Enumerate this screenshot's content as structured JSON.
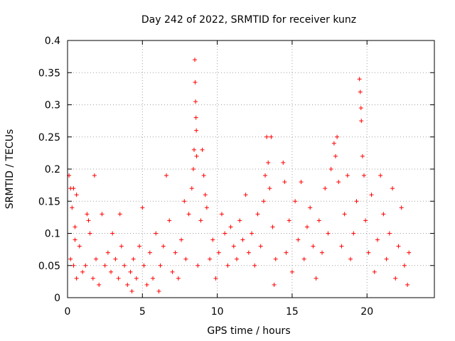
{
  "chart_data": {
    "type": "scatter",
    "title": "Day 242 of 2022, SRMTID for receiver kunz",
    "xlabel": "GPS time / hours",
    "ylabel": "SRMTID / TECUs",
    "xlim": [
      0,
      24.5
    ],
    "ylim": [
      0,
      0.4
    ],
    "xticks": [
      0,
      5,
      10,
      15,
      20
    ],
    "xtick_labels": [
      "0",
      "5",
      "10",
      "15",
      "20"
    ],
    "yticks": [
      0,
      0.05,
      0.1,
      0.15,
      0.2,
      0.25,
      0.3,
      0.35,
      0.4
    ],
    "ytick_labels": [
      "0",
      "0.05",
      "0.1",
      "0.15",
      "0.2",
      "0.25",
      "0.3",
      "0.35",
      "0.4"
    ],
    "grid": true,
    "marker": "+",
    "color": "#ff0000",
    "series": [
      {
        "name": "SRMTID",
        "points": [
          [
            0.1,
            0.19
          ],
          [
            0.2,
            0.17
          ],
          [
            0.3,
            0.14
          ],
          [
            0.4,
            0.17
          ],
          [
            0.5,
            0.11
          ],
          [
            0.6,
            0.16
          ],
          [
            0.2,
            0.06
          ],
          [
            0.4,
            0.05
          ],
          [
            0.6,
            0.03
          ],
          [
            0.8,
            0.08
          ],
          [
            1.0,
            0.04
          ],
          [
            0.5,
            0.09
          ],
          [
            1.2,
            0.05
          ],
          [
            1.3,
            0.13
          ],
          [
            1.4,
            0.12
          ],
          [
            1.5,
            0.1
          ],
          [
            1.7,
            0.03
          ],
          [
            1.8,
            0.19
          ],
          [
            1.9,
            0.06
          ],
          [
            2.1,
            0.02
          ],
          [
            2.3,
            0.13
          ],
          [
            2.5,
            0.05
          ],
          [
            2.7,
            0.07
          ],
          [
            2.9,
            0.04
          ],
          [
            3.0,
            0.1
          ],
          [
            3.2,
            0.06
          ],
          [
            3.4,
            0.03
          ],
          [
            3.6,
            0.08
          ],
          [
            3.5,
            0.13
          ],
          [
            3.8,
            0.05
          ],
          [
            4.0,
            0.02
          ],
          [
            4.2,
            0.04
          ],
          [
            4.3,
            0.01
          ],
          [
            4.4,
            0.06
          ],
          [
            4.6,
            0.03
          ],
          [
            4.8,
            0.08
          ],
          [
            5.0,
            0.14
          ],
          [
            5.1,
            0.05
          ],
          [
            5.3,
            0.02
          ],
          [
            5.5,
            0.07
          ],
          [
            5.7,
            0.03
          ],
          [
            5.9,
            0.1
          ],
          [
            6.1,
            0.01
          ],
          [
            6.2,
            0.05
          ],
          [
            6.4,
            0.08
          ],
          [
            6.6,
            0.19
          ],
          [
            6.8,
            0.12
          ],
          [
            7.0,
            0.04
          ],
          [
            7.2,
            0.07
          ],
          [
            7.4,
            0.03
          ],
          [
            7.6,
            0.09
          ],
          [
            7.8,
            0.15
          ],
          [
            7.9,
            0.06
          ],
          [
            8.1,
            0.13
          ],
          [
            8.3,
            0.17
          ],
          [
            8.4,
            0.2
          ],
          [
            8.45,
            0.23
          ],
          [
            8.5,
            0.37
          ],
          [
            8.52,
            0.335
          ],
          [
            8.55,
            0.305
          ],
          [
            8.58,
            0.28
          ],
          [
            8.6,
            0.26
          ],
          [
            8.62,
            0.22
          ],
          [
            8.7,
            0.05
          ],
          [
            8.9,
            0.12
          ],
          [
            9.0,
            0.23
          ],
          [
            9.1,
            0.19
          ],
          [
            9.2,
            0.16
          ],
          [
            9.3,
            0.14
          ],
          [
            9.5,
            0.06
          ],
          [
            9.7,
            0.09
          ],
          [
            9.9,
            0.03
          ],
          [
            10.1,
            0.07
          ],
          [
            10.3,
            0.13
          ],
          [
            10.5,
            0.1
          ],
          [
            10.7,
            0.05
          ],
          [
            10.9,
            0.11
          ],
          [
            11.1,
            0.08
          ],
          [
            11.3,
            0.06
          ],
          [
            11.5,
            0.12
          ],
          [
            11.7,
            0.09
          ],
          [
            11.9,
            0.16
          ],
          [
            12.1,
            0.07
          ],
          [
            12.3,
            0.1
          ],
          [
            12.5,
            0.05
          ],
          [
            12.7,
            0.13
          ],
          [
            12.9,
            0.08
          ],
          [
            13.1,
            0.15
          ],
          [
            13.2,
            0.19
          ],
          [
            13.3,
            0.25
          ],
          [
            13.4,
            0.21
          ],
          [
            13.5,
            0.17
          ],
          [
            13.6,
            0.25
          ],
          [
            13.7,
            0.11
          ],
          [
            13.8,
            0.02
          ],
          [
            13.9,
            0.06
          ],
          [
            14.4,
            0.21
          ],
          [
            14.5,
            0.18
          ],
          [
            14.6,
            0.07
          ],
          [
            14.8,
            0.12
          ],
          [
            15.0,
            0.04
          ],
          [
            15.2,
            0.15
          ],
          [
            15.4,
            0.09
          ],
          [
            15.6,
            0.18
          ],
          [
            15.8,
            0.06
          ],
          [
            16.0,
            0.11
          ],
          [
            16.2,
            0.14
          ],
          [
            16.4,
            0.08
          ],
          [
            16.6,
            0.03
          ],
          [
            16.8,
            0.12
          ],
          [
            17.0,
            0.07
          ],
          [
            17.2,
            0.17
          ],
          [
            17.4,
            0.1
          ],
          [
            17.6,
            0.2
          ],
          [
            17.8,
            0.24
          ],
          [
            17.9,
            0.22
          ],
          [
            18.0,
            0.25
          ],
          [
            18.1,
            0.18
          ],
          [
            18.3,
            0.08
          ],
          [
            18.5,
            0.13
          ],
          [
            18.7,
            0.19
          ],
          [
            18.9,
            0.06
          ],
          [
            19.1,
            0.1
          ],
          [
            19.3,
            0.15
          ],
          [
            19.5,
            0.34
          ],
          [
            19.55,
            0.32
          ],
          [
            19.6,
            0.295
          ],
          [
            19.62,
            0.275
          ],
          [
            19.7,
            0.22
          ],
          [
            19.8,
            0.19
          ],
          [
            19.9,
            0.12
          ],
          [
            20.1,
            0.07
          ],
          [
            20.3,
            0.16
          ],
          [
            20.5,
            0.04
          ],
          [
            20.7,
            0.09
          ],
          [
            20.9,
            0.19
          ],
          [
            21.1,
            0.13
          ],
          [
            21.3,
            0.06
          ],
          [
            21.5,
            0.1
          ],
          [
            21.7,
            0.17
          ],
          [
            21.9,
            0.03
          ],
          [
            22.1,
            0.08
          ],
          [
            22.3,
            0.14
          ],
          [
            22.5,
            0.05
          ],
          [
            22.7,
            0.02
          ],
          [
            22.8,
            0.07
          ]
        ]
      }
    ]
  }
}
